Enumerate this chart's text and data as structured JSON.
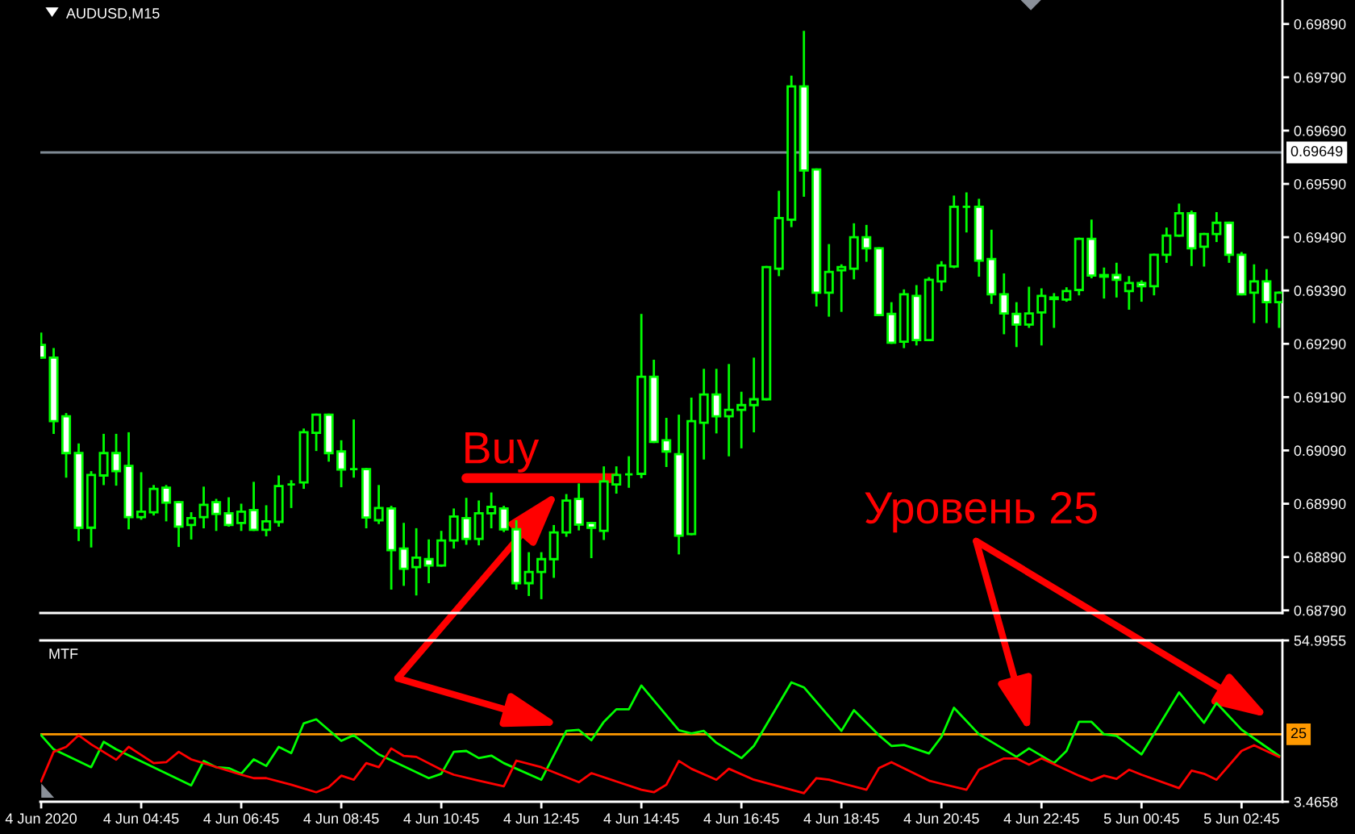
{
  "chart_data": [
    {
      "type": "candlestick",
      "title": "AUDUSD,M15",
      "x": [
        "2020-06-04T02:45",
        "2020-06-04T03:00",
        "2020-06-04T03:15",
        "2020-06-04T03:30",
        "2020-06-04T03:45",
        "2020-06-04T04:00",
        "2020-06-04T04:15",
        "2020-06-04T04:30",
        "2020-06-04T04:45",
        "2020-06-04T05:00",
        "2020-06-04T05:15",
        "2020-06-04T05:30",
        "2020-06-04T05:45",
        "2020-06-04T06:00",
        "2020-06-04T06:15",
        "2020-06-04T06:30",
        "2020-06-04T06:45",
        "2020-06-04T07:00",
        "2020-06-04T07:15",
        "2020-06-04T07:30",
        "2020-06-04T07:45",
        "2020-06-04T08:00",
        "2020-06-04T08:15",
        "2020-06-04T08:30",
        "2020-06-04T08:45",
        "2020-06-04T09:00",
        "2020-06-04T09:15",
        "2020-06-04T09:30",
        "2020-06-04T09:45",
        "2020-06-04T10:00",
        "2020-06-04T10:15",
        "2020-06-04T10:30",
        "2020-06-04T10:45",
        "2020-06-04T11:00",
        "2020-06-04T11:15",
        "2020-06-04T11:30",
        "2020-06-04T11:45",
        "2020-06-04T12:00",
        "2020-06-04T12:15",
        "2020-06-04T12:30",
        "2020-06-04T12:45",
        "2020-06-04T13:00",
        "2020-06-04T13:15",
        "2020-06-04T13:30",
        "2020-06-04T13:45",
        "2020-06-04T14:00",
        "2020-06-04T14:15",
        "2020-06-04T14:30",
        "2020-06-04T14:45",
        "2020-06-04T15:00",
        "2020-06-04T15:15",
        "2020-06-04T15:30",
        "2020-06-04T15:45",
        "2020-06-04T16:00",
        "2020-06-04T16:15",
        "2020-06-04T16:30",
        "2020-06-04T16:45",
        "2020-06-04T17:00",
        "2020-06-04T17:15",
        "2020-06-04T17:30",
        "2020-06-04T17:45",
        "2020-06-04T18:00",
        "2020-06-04T18:15",
        "2020-06-04T18:30",
        "2020-06-04T18:45",
        "2020-06-04T19:00",
        "2020-06-04T19:15",
        "2020-06-04T19:30",
        "2020-06-04T19:45",
        "2020-06-04T20:00",
        "2020-06-04T20:15",
        "2020-06-04T20:30",
        "2020-06-04T20:45",
        "2020-06-04T21:00",
        "2020-06-04T21:15",
        "2020-06-04T21:30",
        "2020-06-04T21:45",
        "2020-06-04T22:00",
        "2020-06-04T22:15",
        "2020-06-04T22:30",
        "2020-06-04T22:45",
        "2020-06-04T23:00",
        "2020-06-04T23:15",
        "2020-06-04T23:30",
        "2020-06-04T23:45",
        "2020-06-05T00:00",
        "2020-06-05T00:15",
        "2020-06-05T00:30",
        "2020-06-05T00:45",
        "2020-06-05T01:00",
        "2020-06-05T01:15",
        "2020-06-05T01:30",
        "2020-06-05T01:45",
        "2020-06-05T02:00",
        "2020-06-05T02:15",
        "2020-06-05T02:30",
        "2020-06-05T02:45",
        "2020-06-05T03:00",
        "2020-06-05T03:15",
        "2020-06-05T03:30"
      ],
      "ohlc": [
        [
          0.69288,
          0.69309,
          0.69264,
          0.69264
        ],
        [
          0.69264,
          0.6928,
          0.69123,
          0.69145
        ],
        [
          0.69154,
          0.69158,
          0.69041,
          0.69085
        ],
        [
          0.69085,
          0.69101,
          0.68922,
          0.68945
        ],
        [
          0.68945,
          0.69049,
          0.6891,
          0.69044
        ],
        [
          0.69043,
          0.69119,
          0.69027,
          0.69085
        ],
        [
          0.69085,
          0.69119,
          0.69026,
          0.69051
        ],
        [
          0.69061,
          0.69122,
          0.68944,
          0.68965
        ],
        [
          0.68965,
          0.69047,
          0.68962,
          0.68975
        ],
        [
          0.68974,
          0.69023,
          0.6897,
          0.69018
        ],
        [
          0.6902,
          0.69023,
          0.68959,
          0.68992
        ],
        [
          0.68993,
          0.68993,
          0.68911,
          0.68947
        ],
        [
          0.6895,
          0.68972,
          0.68925,
          0.68963
        ],
        [
          0.68965,
          0.6902,
          0.68946,
          0.68988
        ],
        [
          0.68993,
          0.68997,
          0.68941,
          0.68971
        ],
        [
          0.68972,
          0.69,
          0.68949,
          0.6895
        ],
        [
          0.68954,
          0.68988,
          0.68941,
          0.68975
        ],
        [
          0.68978,
          0.69029,
          0.68941,
          0.68941
        ],
        [
          0.68941,
          0.68985,
          0.68931,
          0.68957
        ],
        [
          0.68956,
          0.69041,
          0.68949,
          0.69023
        ],
        [
          0.69026,
          0.69032,
          0.68984,
          0.69026
        ],
        [
          0.6903,
          0.69129,
          0.6902,
          0.69124
        ],
        [
          0.69123,
          0.69157,
          0.69091,
          0.69157
        ],
        [
          0.69157,
          0.69157,
          0.69071,
          0.69085
        ],
        [
          0.69088,
          0.69107,
          0.69023,
          0.69054
        ],
        [
          0.69055,
          0.69146,
          0.69041,
          0.69055
        ],
        [
          0.69055,
          0.69055,
          0.68946,
          0.68964
        ],
        [
          0.68959,
          0.69023,
          0.68954,
          0.68982
        ],
        [
          0.68981,
          0.68984,
          0.68831,
          0.68903
        ],
        [
          0.68906,
          0.68952,
          0.68838,
          0.68868
        ],
        [
          0.68871,
          0.68942,
          0.6882,
          0.68889
        ],
        [
          0.68886,
          0.68921,
          0.68843,
          0.68874
        ],
        [
          0.68874,
          0.68937,
          0.68874,
          0.68921
        ],
        [
          0.68921,
          0.68979,
          0.68908,
          0.68966
        ],
        [
          0.68963,
          0.68999,
          0.68915,
          0.68924
        ],
        [
          0.68924,
          0.68994,
          0.68914,
          0.68972
        ],
        [
          0.68972,
          0.69009,
          0.68946,
          0.68984
        ],
        [
          0.68981,
          0.68984,
          0.68939,
          0.68942
        ],
        [
          0.68942,
          0.68957,
          0.68831,
          0.68841
        ],
        [
          0.68841,
          0.68897,
          0.68819,
          0.68862
        ],
        [
          0.68862,
          0.68897,
          0.68813,
          0.68886
        ],
        [
          0.68886,
          0.68948,
          0.68853,
          0.68936
        ],
        [
          0.68936,
          0.69006,
          0.6893,
          0.68996
        ],
        [
          0.68999,
          0.69026,
          0.68942,
          0.68951
        ],
        [
          0.68954,
          0.68954,
          0.6889,
          0.68945
        ],
        [
          0.68939,
          0.69058,
          0.68924,
          0.69032
        ],
        [
          0.69026,
          0.69058,
          0.69011,
          0.69044
        ],
        [
          0.69045,
          0.69077,
          0.69022,
          0.69045
        ],
        [
          0.69046,
          0.69344,
          0.6904,
          0.69228
        ],
        [
          0.69228,
          0.69258,
          0.69106,
          0.69106
        ],
        [
          0.69109,
          0.69149,
          0.69061,
          0.69088
        ],
        [
          0.69083,
          0.69155,
          0.68897,
          0.6893
        ],
        [
          0.68933,
          0.69187,
          0.68933,
          0.69145
        ],
        [
          0.69142,
          0.69241,
          0.69075,
          0.69195
        ],
        [
          0.69195,
          0.69241,
          0.69124,
          0.69154
        ],
        [
          0.69154,
          0.6925,
          0.69081,
          0.69166
        ],
        [
          0.69166,
          0.69198,
          0.69096,
          0.69175
        ],
        [
          0.69175,
          0.69262,
          0.69126,
          0.69186
        ],
        [
          0.69186,
          0.69434,
          0.69186,
          0.69434
        ],
        [
          0.69431,
          0.69575,
          0.69419,
          0.69526
        ],
        [
          0.69523,
          0.69791,
          0.69511,
          0.69773
        ],
        [
          0.69773,
          0.69875,
          0.69568,
          0.69615
        ],
        [
          0.69617,
          0.69617,
          0.69362,
          0.69386
        ],
        [
          0.69386,
          0.69475,
          0.69343,
          0.69425
        ],
        [
          0.69428,
          0.69437,
          0.69352,
          0.69434
        ],
        [
          0.69431,
          0.69514,
          0.69413,
          0.6949
        ],
        [
          0.6949,
          0.69511,
          0.69446,
          0.69469
        ],
        [
          0.69469,
          0.69469,
          0.69344,
          0.69344
        ],
        [
          0.69346,
          0.69366,
          0.69292,
          0.69292
        ],
        [
          0.69294,
          0.6939,
          0.69284,
          0.69383
        ],
        [
          0.6938,
          0.69398,
          0.69289,
          0.69297
        ],
        [
          0.69297,
          0.69413,
          0.69297,
          0.6941
        ],
        [
          0.69407,
          0.69443,
          0.69391,
          0.69437
        ],
        [
          0.69435,
          0.69566,
          0.69434,
          0.69547
        ],
        [
          0.69547,
          0.69572,
          0.69501,
          0.69547
        ],
        [
          0.69547,
          0.6956,
          0.69418,
          0.69446
        ],
        [
          0.69449,
          0.69502,
          0.69367,
          0.69383
        ],
        [
          0.69383,
          0.6942,
          0.6931,
          0.69347
        ],
        [
          0.69346,
          0.69366,
          0.69286,
          0.69326
        ],
        [
          0.69326,
          0.69395,
          0.69322,
          0.69347
        ],
        [
          0.69349,
          0.69392,
          0.69289,
          0.6938
        ],
        [
          0.69374,
          0.69383,
          0.69322,
          0.69377
        ],
        [
          0.69373,
          0.69394,
          0.69371,
          0.69389
        ],
        [
          0.69391,
          0.69487,
          0.69383,
          0.69487
        ],
        [
          0.69487,
          0.69521,
          0.69415,
          0.69418
        ],
        [
          0.69419,
          0.69431,
          0.69377,
          0.69416
        ],
        [
          0.69419,
          0.6944,
          0.69379,
          0.6941
        ],
        [
          0.69389,
          0.69415,
          0.69356,
          0.69404
        ],
        [
          0.69404,
          0.69407,
          0.69371,
          0.69398
        ],
        [
          0.69398,
          0.69457,
          0.69383,
          0.69457
        ],
        [
          0.69457,
          0.69506,
          0.69444,
          0.69493
        ],
        [
          0.69493,
          0.69551,
          0.69493,
          0.69535
        ],
        [
          0.69535,
          0.69538,
          0.69438,
          0.69469
        ],
        [
          0.69472,
          0.69496,
          0.69437,
          0.69496
        ],
        [
          0.69496,
          0.69535,
          0.69483,
          0.69517
        ],
        [
          0.69517,
          0.69517,
          0.69444,
          0.69457
        ],
        [
          0.69457,
          0.6946,
          0.69383,
          0.69383
        ],
        [
          0.69386,
          0.69437,
          0.69331,
          0.69407
        ],
        [
          0.69407,
          0.69428,
          0.69331,
          0.69368
        ],
        [
          0.69368,
          0.69386,
          0.69322,
          0.69386
        ]
      ],
      "color": "#00ff00",
      "colors": [
        "#ffffff",
        "#ffffff",
        "#ffffff",
        "#ffffff",
        "#000000",
        "#000000",
        "#ffffff",
        "#ffffff",
        "#000000",
        "#000000",
        "#ffffff",
        "#ffffff",
        "#000000",
        "#000000",
        "#ffffff",
        "#ffffff",
        "#000000",
        "#ffffff",
        "#000000",
        "#000000",
        "#00ff00",
        "#000000",
        "#000000",
        "#ffffff",
        "#ffffff",
        "#00ff00",
        "#ffffff",
        "#000000",
        "#ffffff",
        "#ffffff",
        "#000000",
        "#ffffff",
        "#000000",
        "#000000",
        "#ffffff",
        "#000000",
        "#000000",
        "#ffffff",
        "#ffffff",
        "#000000",
        "#000000",
        "#000000",
        "#000000",
        "#ffffff",
        "#ffffff",
        "#000000",
        "#000000",
        "#00ff00",
        "#000000",
        "#ffffff",
        "#ffffff",
        "#ffffff",
        "#000000",
        "#000000",
        "#ffffff",
        "#000000",
        "#000000",
        "#000000",
        "#000000",
        "#000000",
        "#000000",
        "#ffffff",
        "#ffffff",
        "#000000",
        "#000000",
        "#000000",
        "#ffffff",
        "#ffffff",
        "#ffffff",
        "#000000",
        "#ffffff",
        "#000000",
        "#000000",
        "#000000",
        "#00ff00",
        "#ffffff",
        "#ffffff",
        "#ffffff",
        "#ffffff",
        "#000000",
        "#000000",
        "#000000",
        "#000000",
        "#000000",
        "#ffffff",
        "#ffffff",
        "#ffffff",
        "#000000",
        "#ffffff",
        "#000000",
        "#000000",
        "#000000",
        "#ffffff",
        "#000000",
        "#000000",
        "#ffffff",
        "#ffffff",
        "#000000",
        "#ffffff",
        "#000000"
      ],
      "series": [
        {
          "type": "line",
          "color": "#ff0000",
          "x": [
            "2020-06-04T11:15",
            "2020-06-04T14:15"
          ],
          "values": [
            0.69038,
            0.69038
          ]
        }
      ],
      "xlim": [
        "2020-06-04T02:44",
        "2020-06-05T03:34"
      ],
      "ylim": [
        0.68785,
        0.69935
      ],
      "yticks": [
        {
          "value": 0.6989,
          "label": "0.69890"
        },
        {
          "value": 0.6979,
          "label": "0.69790"
        },
        {
          "value": 0.6969,
          "label": "0.69690"
        },
        {
          "value": 0.6959,
          "label": "0.69590"
        },
        {
          "value": 0.6949,
          "label": "0.69490"
        },
        {
          "value": 0.6939,
          "label": "0.69390"
        },
        {
          "value": 0.6929,
          "label": "0.69290"
        },
        {
          "value": 0.6919,
          "label": "0.69190"
        },
        {
          "value": 0.6909,
          "label": "0.69090"
        },
        {
          "value": 0.6899,
          "label": "0.68990"
        },
        {
          "value": 0.6889,
          "label": "0.68890"
        },
        {
          "value": 0.6879,
          "label": "0.68790"
        }
      ],
      "tick_labels": "y",
      "ref_lines": [
        {
          "axis": "y",
          "value": 0.69649,
          "label": "0.69649",
          "color": "#7f8a94"
        }
      ],
      "annotations": [
        {
          "text": "Buy",
          "x": "2020-06-04T11:15",
          "y": 0.69038
        },
        "Уровень 25"
      ]
    },
    {
      "type": "line",
      "title": "MTF",
      "series": [
        {
          "color": "#00ff00",
          "x": [
            "2020-06-04T02:45",
            "2020-06-04T03:00",
            "2020-06-04T03:45",
            "2020-06-04T04:00",
            "2020-06-04T04:15",
            "2020-06-04T05:45",
            "2020-06-04T06:00",
            "2020-06-04T06:15",
            "2020-06-04T06:30",
            "2020-06-04T06:45",
            "2020-06-04T07:00",
            "2020-06-04T07:15",
            "2020-06-04T07:30",
            "2020-06-04T07:45",
            "2020-06-04T08:00",
            "2020-06-04T08:15",
            "2020-06-04T08:45",
            "2020-06-04T09:00",
            "2020-06-04T09:30",
            "2020-06-04T10:30",
            "2020-06-04T10:45",
            "2020-06-04T11:00",
            "2020-06-04T11:15",
            "2020-06-04T11:30",
            "2020-06-04T11:45",
            "2020-06-04T12:00",
            "2020-06-04T12:45",
            "2020-06-04T13:15",
            "2020-06-04T13:30",
            "2020-06-04T13:45",
            "2020-06-04T14:00",
            "2020-06-04T14:15",
            "2020-06-04T14:30",
            "2020-06-04T14:45",
            "2020-06-04T15:30",
            "2020-06-04T15:45",
            "2020-06-04T16:00",
            "2020-06-04T16:15",
            "2020-06-04T16:45",
            "2020-06-04T17:00",
            "2020-06-04T17:45",
            "2020-06-04T18:00",
            "2020-06-04T18:45",
            "2020-06-04T19:00",
            "2020-06-04T19:30",
            "2020-06-04T19:45",
            "2020-06-04T20:00",
            "2020-06-04T20:30",
            "2020-06-04T20:45",
            "2020-06-04T21:00",
            "2020-06-04T21:30",
            "2020-06-04T22:15",
            "2020-06-04T22:30",
            "2020-06-04T23:00",
            "2020-06-04T23:15",
            "2020-06-04T23:30",
            "2020-06-04T23:45",
            "2020-06-05T00:00",
            "2020-06-05T00:15",
            "2020-06-05T00:45",
            "2020-06-05T01:30",
            "2020-06-05T02:00",
            "2020-06-05T02:15",
            "2020-06-05T02:45",
            "2020-06-05T03:30"
          ],
          "values": [
            24.7,
            20.2,
            14.5,
            22.6,
            20.2,
            8.7,
            16.5,
            14.5,
            14.2,
            12.4,
            17.0,
            14.9,
            21.0,
            19.0,
            28.5,
            29.8,
            22.9,
            24.7,
            18.6,
            11.0,
            12.4,
            19.4,
            19.7,
            17.4,
            18.2,
            15.8,
            10.5,
            26.1,
            26.4,
            23.1,
            29.0,
            33.0,
            33.0,
            40.6,
            26.3,
            25.3,
            26.1,
            22.3,
            17.4,
            21.3,
            41.6,
            40.0,
            26.1,
            32.7,
            24.7,
            21.3,
            21.6,
            18.9,
            24.2,
            33.5,
            25.0,
            17.8,
            20.5,
            15.8,
            19.7,
            29.0,
            29.0,
            25.0,
            24.5,
            18.6,
            38.4,
            28.7,
            35.0,
            26.5,
            18.1
          ]
        },
        {
          "color": "#ff0000",
          "x": [
            "2020-06-04T02:45",
            "2020-06-04T03:00",
            "2020-06-04T03:15",
            "2020-06-04T03:30",
            "2020-06-04T03:45",
            "2020-06-04T04:15",
            "2020-06-04T04:30",
            "2020-06-04T05:00",
            "2020-06-04T05:15",
            "2020-06-04T05:30",
            "2020-06-04T05:45",
            "2020-06-04T06:45",
            "2020-06-04T07:00",
            "2020-06-04T07:15",
            "2020-06-04T07:45",
            "2020-06-04T08:15",
            "2020-06-04T08:30",
            "2020-06-04T08:45",
            "2020-06-04T09:00",
            "2020-06-04T09:15",
            "2020-06-04T09:30",
            "2020-06-04T09:45",
            "2020-06-04T10:00",
            "2020-06-04T10:15",
            "2020-06-04T10:45",
            "2020-06-04T11:00",
            "2020-06-04T11:30",
            "2020-06-04T12:00",
            "2020-06-04T12:15",
            "2020-06-04T12:45",
            "2020-06-04T13:30",
            "2020-06-04T13:45",
            "2020-06-04T14:45",
            "2020-06-04T15:00",
            "2020-06-04T15:15",
            "2020-06-04T15:30",
            "2020-06-04T15:45",
            "2020-06-04T16:15",
            "2020-06-04T16:30",
            "2020-06-04T17:00",
            "2020-06-04T18:00",
            "2020-06-04T18:15",
            "2020-06-04T18:30",
            "2020-06-04T18:45",
            "2020-06-04T19:15",
            "2020-06-04T19:30",
            "2020-06-04T19:45",
            "2020-06-04T20:30",
            "2020-06-04T20:45",
            "2020-06-04T21:15",
            "2020-06-04T21:30",
            "2020-06-04T22:00",
            "2020-06-04T22:15",
            "2020-06-04T22:30",
            "2020-06-04T22:45",
            "2020-06-04T23:30",
            "2020-06-04T23:45",
            "2020-06-05T00:00",
            "2020-06-05T00:15",
            "2020-06-05T00:30",
            "2020-06-05T00:45",
            "2020-06-05T01:30",
            "2020-06-05T01:45",
            "2020-06-05T02:00",
            "2020-06-05T02:15",
            "2020-06-05T02:45",
            "2020-06-05T03:00",
            "2020-06-05T03:30"
          ],
          "values": [
            10.0,
            19.4,
            21.0,
            24.7,
            21.8,
            16.9,
            21.0,
            15.8,
            16.1,
            19.4,
            17.0,
            12.1,
            11.0,
            11.0,
            8.9,
            6.5,
            8.1,
            11.8,
            10.5,
            15.8,
            14.5,
            20.5,
            18.1,
            17.8,
            13.7,
            12.1,
            10.2,
            8.4,
            16.6,
            14.5,
            9.7,
            12.6,
            7.3,
            6.5,
            8.9,
            16.5,
            14.0,
            10.5,
            14.0,
            10.5,
            6.2,
            11.0,
            10.5,
            9.4,
            7.3,
            14.2,
            16.1,
            10.2,
            9.2,
            7.3,
            13.7,
            17.3,
            17.3,
            15.3,
            17.3,
            11.8,
            10.2,
            11.8,
            10.8,
            13.7,
            12.1,
            7.8,
            13.4,
            12.4,
            10.5,
            19.7,
            21.5,
            17.8
          ]
        }
      ],
      "xlim": [
        "2020-06-04T02:44",
        "2020-06-05T03:34"
      ],
      "xticks": [
        {
          "value": "2020-06-04T02:45",
          "label": "4 Jun 2020"
        },
        {
          "value": "2020-06-04T04:45",
          "label": "4 Jun 04:45"
        },
        {
          "value": "2020-06-04T06:45",
          "label": "4 Jun 06:45"
        },
        {
          "value": "2020-06-04T08:45",
          "label": "4 Jun 08:45"
        },
        {
          "value": "2020-06-04T10:45",
          "label": "4 Jun 10:45"
        },
        {
          "value": "2020-06-04T12:45",
          "label": "4 Jun 12:45"
        },
        {
          "value": "2020-06-04T14:45",
          "label": "4 Jun 14:45"
        },
        {
          "value": "2020-06-04T16:45",
          "label": "4 Jun 16:45"
        },
        {
          "value": "2020-06-04T18:45",
          "label": "4 Jun 18:45"
        },
        {
          "value": "2020-06-04T20:45",
          "label": "4 Jun 20:45"
        },
        {
          "value": "2020-06-04T22:45",
          "label": "4 Jun 22:45"
        },
        {
          "value": "2020-06-05T00:45",
          "label": "5 Jun 00:45"
        },
        {
          "value": "2020-06-05T02:45",
          "label": "5 Jun 02:45"
        }
      ],
      "ylim": [
        3.4658,
        54.9955
      ],
      "yticks": [
        54.9955,
        3.4658
      ],
      "ref_lines": [
        {
          "axis": "y",
          "value": 25,
          "label": "25",
          "color": "#ff9900"
        }
      ]
    }
  ]
}
